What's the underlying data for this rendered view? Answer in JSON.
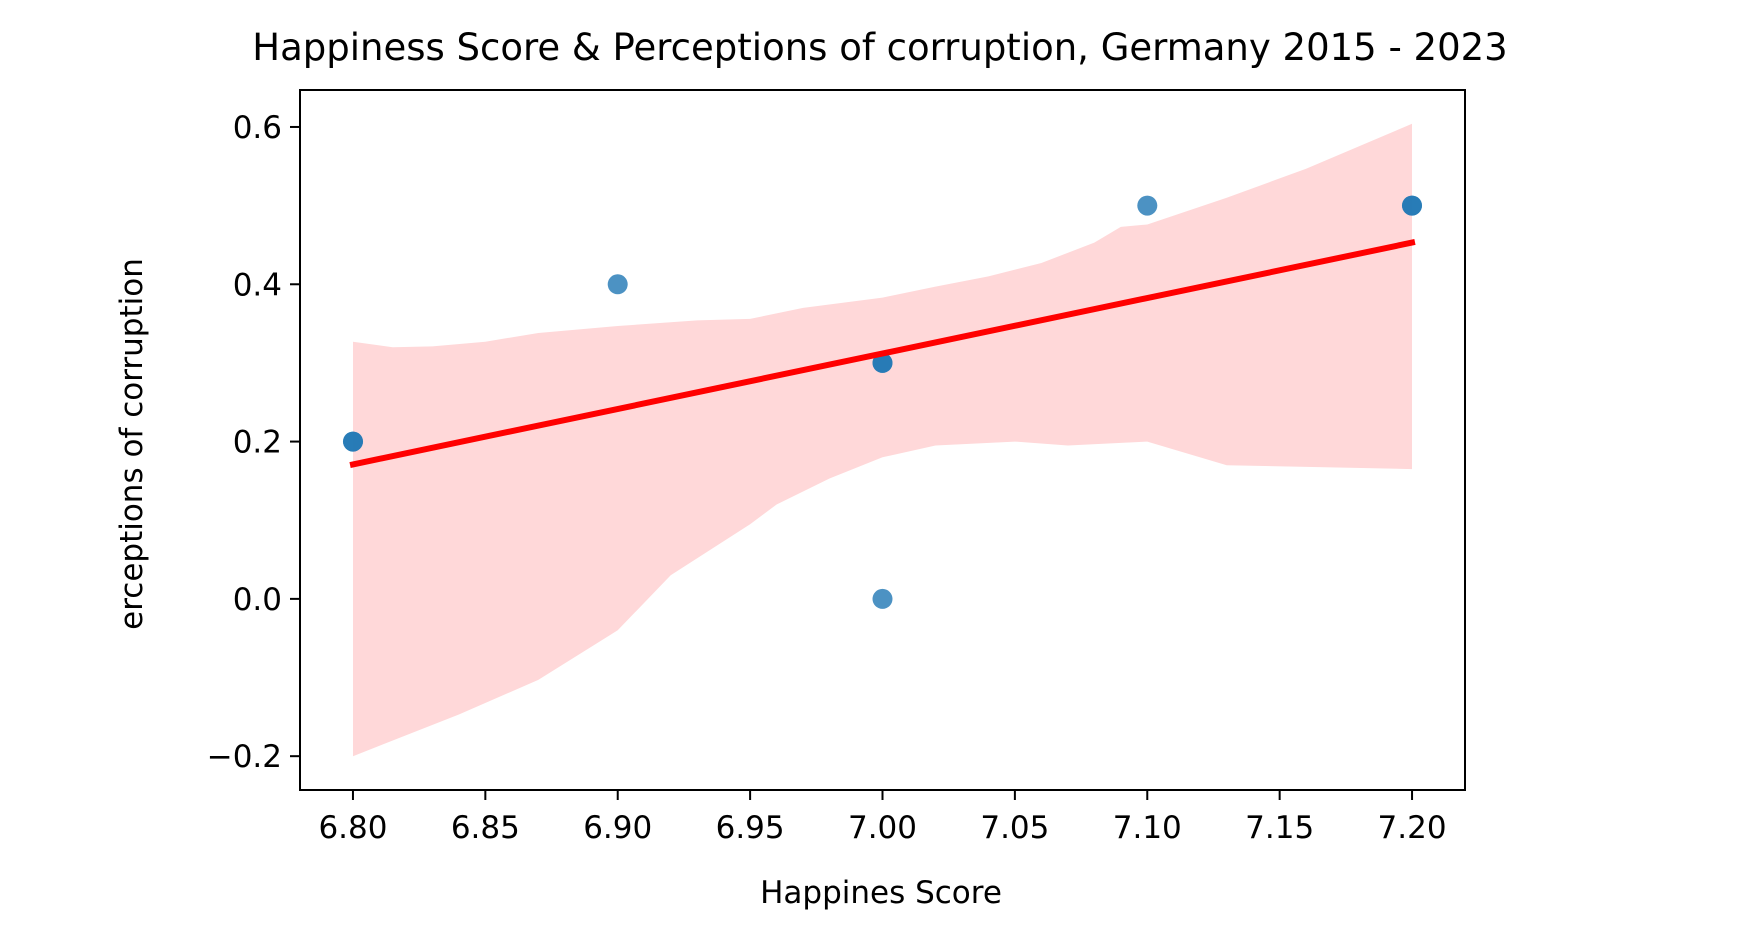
{
  "chart_data": {
    "type": "scatter",
    "title": "Happiness Score & Perceptions of corruption, Germany 2015 - 2023",
    "xlabel": "Happines Score",
    "ylabel": "erceptions of corruption",
    "xlim": [
      6.78,
      7.22
    ],
    "ylim": [
      -0.243,
      0.647
    ],
    "x_ticks": [
      "6.80",
      "6.85",
      "6.90",
      "6.95",
      "7.00",
      "7.05",
      "7.10",
      "7.15",
      "7.20"
    ],
    "y_ticks": [
      "−0.2",
      "0.0",
      "0.2",
      "0.4",
      "0.6"
    ],
    "grid": false,
    "legend": "none",
    "points": [
      {
        "x": 6.8,
        "y": 0.2
      },
      {
        "x": 6.8,
        "y": 0.2
      },
      {
        "x": 6.9,
        "y": 0.4
      },
      {
        "x": 7.0,
        "y": 0.3
      },
      {
        "x": 7.0,
        "y": 0.3
      },
      {
        "x": 7.0,
        "y": 0.0
      },
      {
        "x": 7.1,
        "y": 0.5
      },
      {
        "x": 7.2,
        "y": 0.5
      },
      {
        "x": 7.2,
        "y": 0.5
      }
    ],
    "regression_line": {
      "x": [
        6.8,
        7.2
      ],
      "y": [
        0.171,
        0.453
      ],
      "color": "#ff0000"
    },
    "confidence_band": {
      "color": "#ffd8d9",
      "upper": [
        [
          6.8,
          0.327
        ],
        [
          6.815,
          0.32
        ],
        [
          6.83,
          0.321
        ],
        [
          6.85,
          0.327
        ],
        [
          6.87,
          0.338
        ],
        [
          6.9,
          0.347
        ],
        [
          6.93,
          0.354
        ],
        [
          6.95,
          0.356
        ],
        [
          6.97,
          0.37
        ],
        [
          7.0,
          0.383
        ],
        [
          7.02,
          0.397
        ],
        [
          7.04,
          0.41
        ],
        [
          7.06,
          0.427
        ],
        [
          7.08,
          0.453
        ],
        [
          7.09,
          0.473
        ],
        [
          7.1,
          0.476
        ],
        [
          7.13,
          0.51
        ],
        [
          7.16,
          0.547
        ],
        [
          7.2,
          0.604
        ]
      ],
      "lower": [
        [
          6.8,
          -0.2
        ],
        [
          6.84,
          -0.147
        ],
        [
          6.87,
          -0.103
        ],
        [
          6.9,
          -0.04
        ],
        [
          6.92,
          0.03
        ],
        [
          6.95,
          0.095
        ],
        [
          6.96,
          0.12
        ],
        [
          6.98,
          0.153
        ],
        [
          7.0,
          0.18
        ],
        [
          7.02,
          0.195
        ],
        [
          7.05,
          0.2
        ],
        [
          7.07,
          0.195
        ],
        [
          7.1,
          0.2
        ],
        [
          7.13,
          0.17
        ],
        [
          7.2,
          0.165
        ]
      ]
    },
    "colors": {
      "points": "#1f77b4",
      "line": "#ff0000",
      "band": "#ffd8d9"
    }
  }
}
